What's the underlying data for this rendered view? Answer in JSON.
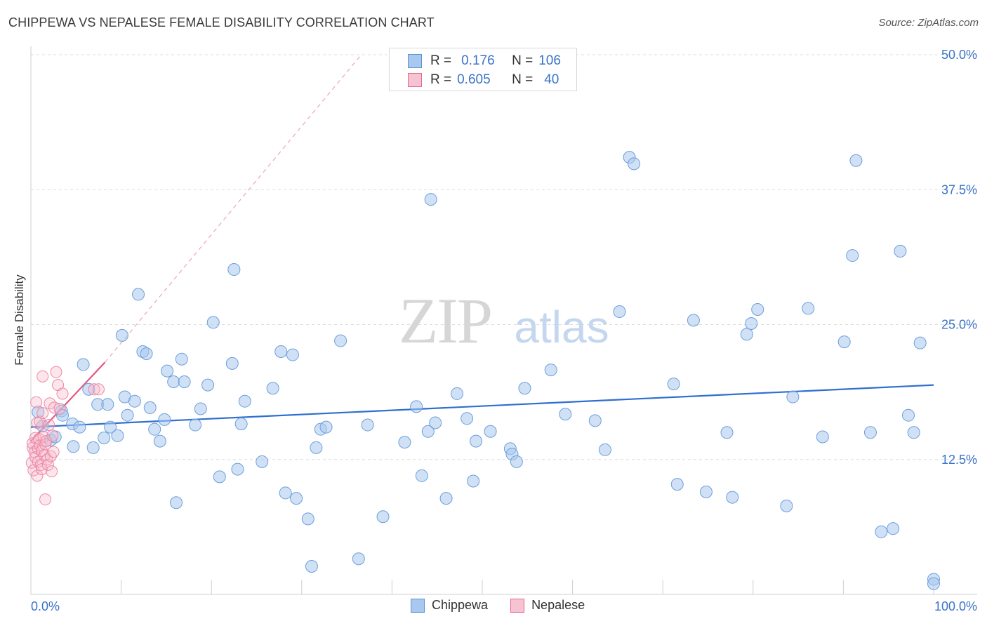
{
  "title": "CHIPPEWA VS NEPALESE FEMALE DISABILITY CORRELATION CHART",
  "source": "Source: ZipAtlas.com",
  "watermark": {
    "zip": "ZIP",
    "atlas": "atlas"
  },
  "colors": {
    "chippewa": "#5b93d6",
    "chippewa_fill": "#a9c8ef",
    "nepalese": "#e8698f",
    "nepalese_fill": "#f6b6c9",
    "tick_text": "#3b73c9"
  },
  "stats": {
    "chippewa": {
      "r_label": "R =",
      "r": "0.176",
      "n_label": "N =",
      "n": "106"
    },
    "nepalese": {
      "r_label": "R =",
      "r": "0.605",
      "n_label": "N =",
      "n": "40"
    }
  },
  "legend": {
    "chippewa": "Chippewa",
    "nepalese": "Nepalese"
  },
  "chart_data": {
    "type": "scatter",
    "title": "CHIPPEWA VS NEPALESE FEMALE DISABILITY CORRELATION CHART",
    "xlabel": "",
    "ylabel": "Female Disability",
    "xlim": [
      0,
      100
    ],
    "ylim": [
      0,
      50
    ],
    "x_tick_labels": [
      "0.0%",
      "100.0%"
    ],
    "y_ticks": [
      12.5,
      25.0,
      37.5,
      50.0
    ],
    "y_tick_labels": [
      "12.5%",
      "25.0%",
      "37.5%",
      "50.0%"
    ],
    "grid": "horizontal dashed",
    "legend_position": "bottom-center",
    "series": [
      {
        "name": "Chippewa",
        "points": [
          [
            0.8,
            16.9
          ],
          [
            1.3,
            15.6
          ],
          [
            2.2,
            14.3
          ],
          [
            2.7,
            14.6
          ],
          [
            3.4,
            17.0
          ],
          [
            3.5,
            16.6
          ],
          [
            4.6,
            15.8
          ],
          [
            4.7,
            13.7
          ],
          [
            5.4,
            15.5
          ],
          [
            5.8,
            21.3
          ],
          [
            6.4,
            19.0
          ],
          [
            6.9,
            13.6
          ],
          [
            7.4,
            17.6
          ],
          [
            8.1,
            14.5
          ],
          [
            8.5,
            17.6
          ],
          [
            8.8,
            15.5
          ],
          [
            9.6,
            14.7
          ],
          [
            10.1,
            24.0
          ],
          [
            10.4,
            18.3
          ],
          [
            10.7,
            16.6
          ],
          [
            11.5,
            17.9
          ],
          [
            11.9,
            27.8
          ],
          [
            12.4,
            22.5
          ],
          [
            12.8,
            22.3
          ],
          [
            13.2,
            17.3
          ],
          [
            13.7,
            15.3
          ],
          [
            14.3,
            14.2
          ],
          [
            14.8,
            16.2
          ],
          [
            15.1,
            20.7
          ],
          [
            15.8,
            19.7
          ],
          [
            16.1,
            8.5
          ],
          [
            16.7,
            21.8
          ],
          [
            17.0,
            19.7
          ],
          [
            18.2,
            15.7
          ],
          [
            18.8,
            17.2
          ],
          [
            19.6,
            19.4
          ],
          [
            20.2,
            25.2
          ],
          [
            20.9,
            10.9
          ],
          [
            22.3,
            21.4
          ],
          [
            22.5,
            30.1
          ],
          [
            22.9,
            11.6
          ],
          [
            23.3,
            15.8
          ],
          [
            23.7,
            17.9
          ],
          [
            25.6,
            12.3
          ],
          [
            26.8,
            19.1
          ],
          [
            27.7,
            22.5
          ],
          [
            28.2,
            9.4
          ],
          [
            29.0,
            22.2
          ],
          [
            29.4,
            8.9
          ],
          [
            30.7,
            7.0
          ],
          [
            31.1,
            2.6
          ],
          [
            31.6,
            13.6
          ],
          [
            32.1,
            15.3
          ],
          [
            32.7,
            15.5
          ],
          [
            34.3,
            23.5
          ],
          [
            36.3,
            3.3
          ],
          [
            37.3,
            15.7
          ],
          [
            39.0,
            7.2
          ],
          [
            41.4,
            14.1
          ],
          [
            42.7,
            17.4
          ],
          [
            43.3,
            11.0
          ],
          [
            44.0,
            15.1
          ],
          [
            44.3,
            36.6
          ],
          [
            44.8,
            15.9
          ],
          [
            46.0,
            8.9
          ],
          [
            47.2,
            18.6
          ],
          [
            48.3,
            16.3
          ],
          [
            49.0,
            10.5
          ],
          [
            49.3,
            14.2
          ],
          [
            50.9,
            15.1
          ],
          [
            53.1,
            13.5
          ],
          [
            53.3,
            13.0
          ],
          [
            53.8,
            12.3
          ],
          [
            54.7,
            19.1
          ],
          [
            57.6,
            20.8
          ],
          [
            59.2,
            16.7
          ],
          [
            62.5,
            16.1
          ],
          [
            63.6,
            13.4
          ],
          [
            65.2,
            26.2
          ],
          [
            66.3,
            40.5
          ],
          [
            66.8,
            39.9
          ],
          [
            71.2,
            19.5
          ],
          [
            71.6,
            10.2
          ],
          [
            73.4,
            25.4
          ],
          [
            74.8,
            9.5
          ],
          [
            77.1,
            15.0
          ],
          [
            77.7,
            9.0
          ],
          [
            79.3,
            24.1
          ],
          [
            79.8,
            25.1
          ],
          [
            80.5,
            26.4
          ],
          [
            83.7,
            8.2
          ],
          [
            84.4,
            18.3
          ],
          [
            86.1,
            26.5
          ],
          [
            87.7,
            14.6
          ],
          [
            90.1,
            23.4
          ],
          [
            91.0,
            31.4
          ],
          [
            91.4,
            40.2
          ],
          [
            93.0,
            15.0
          ],
          [
            94.2,
            5.8
          ],
          [
            95.5,
            6.1
          ],
          [
            96.3,
            31.8
          ],
          [
            97.2,
            16.6
          ],
          [
            97.8,
            15.0
          ],
          [
            98.5,
            23.3
          ],
          [
            100.0,
            1.4
          ],
          [
            100.0,
            1.0
          ]
        ],
        "trend": [
          [
            0,
            15.5
          ],
          [
            100,
            19.4
          ]
        ]
      },
      {
        "name": "Nepalese",
        "points": [
          [
            0.1,
            12.2
          ],
          [
            0.2,
            13.6
          ],
          [
            0.2,
            14.0
          ],
          [
            0.3,
            11.5
          ],
          [
            0.4,
            13.2
          ],
          [
            0.5,
            14.5
          ],
          [
            0.5,
            12.7
          ],
          [
            0.6,
            17.8
          ],
          [
            0.7,
            15.9
          ],
          [
            0.7,
            11.0
          ],
          [
            0.8,
            13.5
          ],
          [
            0.8,
            12.3
          ],
          [
            0.9,
            14.4
          ],
          [
            1.0,
            16.0
          ],
          [
            1.0,
            13.8
          ],
          [
            1.1,
            12.0
          ],
          [
            1.2,
            13.3
          ],
          [
            1.2,
            11.6
          ],
          [
            1.3,
            16.8
          ],
          [
            1.3,
            20.2
          ],
          [
            1.4,
            14.6
          ],
          [
            1.5,
            12.9
          ],
          [
            1.6,
            8.8
          ],
          [
            1.6,
            13.9
          ],
          [
            1.7,
            14.2
          ],
          [
            1.8,
            12.5
          ],
          [
            1.9,
            12.0
          ],
          [
            2.0,
            15.7
          ],
          [
            2.1,
            17.7
          ],
          [
            2.2,
            12.8
          ],
          [
            2.3,
            11.4
          ],
          [
            2.4,
            14.7
          ],
          [
            2.5,
            13.2
          ],
          [
            2.6,
            17.3
          ],
          [
            2.8,
            20.6
          ],
          [
            3.0,
            19.4
          ],
          [
            3.2,
            17.2
          ],
          [
            3.5,
            18.6
          ],
          [
            7.0,
            19.0
          ],
          [
            7.5,
            19.0
          ]
        ],
        "trend": [
          [
            0,
            14.2
          ],
          [
            8.2,
            21.5
          ]
        ],
        "trend_extension": [
          [
            8.2,
            21.5
          ],
          [
            36.6,
            50
          ]
        ]
      }
    ]
  }
}
